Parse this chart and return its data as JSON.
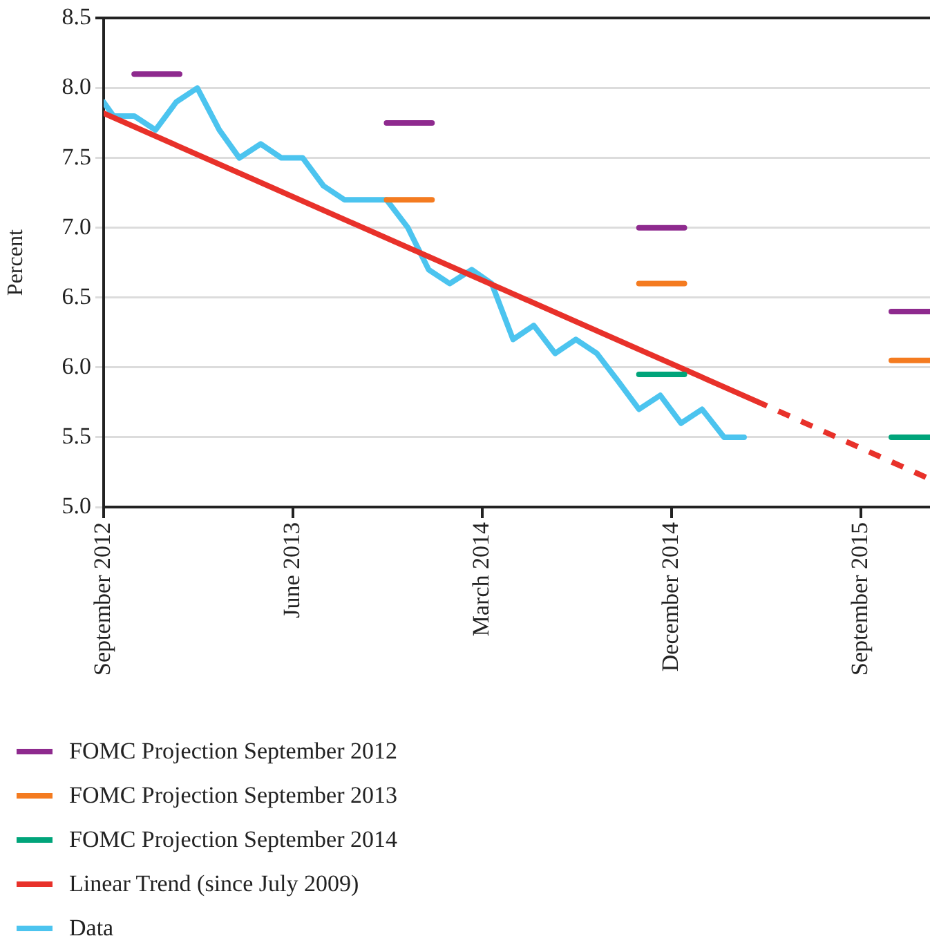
{
  "chart_data": {
    "type": "line",
    "ylabel": "Percent",
    "xlim": [
      "2012-09-01",
      "2015-12-10"
    ],
    "xticks": [
      {
        "value": "2012-09-01",
        "label": "September 2012"
      },
      {
        "value": "2013-06-01",
        "label": "June 2013"
      },
      {
        "value": "2014-03-01",
        "label": "March 2014"
      },
      {
        "value": "2014-12-01",
        "label": "December 2014"
      },
      {
        "value": "2015-09-01",
        "label": "September 2015"
      }
    ],
    "ylim": [
      5,
      8.5
    ],
    "yticks": [
      {
        "value": 5,
        "label": "5.0"
      },
      {
        "value": 5.5,
        "label": "5.5"
      },
      {
        "value": 6,
        "label": "6.0"
      },
      {
        "value": 6.5,
        "label": "6.5"
      },
      {
        "value": 7,
        "label": "7.0"
      },
      {
        "value": 7.5,
        "label": "7.5"
      },
      {
        "value": 8,
        "label": "8.0"
      },
      {
        "value": 8.5,
        "label": "8.5"
      }
    ],
    "grid": "y",
    "legend": "bottom",
    "marker": "none",
    "series": [
      {
        "name": "FOMC Projection September 2012",
        "color": "#8e2a8e",
        "line_style": "solid",
        "x": [
          "2012-10-15",
          "2012-12-20"
        ],
        "values": [
          8.1,
          8.1
        ]
      },
      {
        "name": "FOMC Projection September 2013",
        "color": "#f47b20",
        "line_style": "solid",
        "x": [
          "2013-10-15",
          "2013-12-20"
        ],
        "values": [
          7.2,
          7.2
        ]
      },
      {
        "name": "FOMC Projection September 2014",
        "color": "#00a47a",
        "line_style": "solid",
        "x": [
          "2014-10-15",
          "2014-12-20"
        ],
        "values": [
          5.95,
          5.95
        ]
      },
      {
        "color": "#8e2a8e",
        "line_style": "solid",
        "x": [
          "2013-10-15",
          "2013-12-20"
        ],
        "values": [
          7.75,
          7.75
        ]
      },
      {
        "color": "#8e2a8e",
        "line_style": "solid",
        "x": [
          "2014-10-15",
          "2014-12-20"
        ],
        "values": [
          7.0,
          7.0
        ]
      },
      {
        "color": "#8e2a8e",
        "line_style": "solid",
        "x": [
          "2015-10-15",
          "2015-12-10"
        ],
        "values": [
          6.4,
          6.4
        ]
      },
      {
        "color": "#f47b20",
        "line_style": "solid",
        "x": [
          "2014-10-15",
          "2014-12-20"
        ],
        "values": [
          6.6,
          6.6
        ]
      },
      {
        "color": "#f47b20",
        "line_style": "solid",
        "x": [
          "2015-10-15",
          "2015-12-10"
        ],
        "values": [
          6.05,
          6.05
        ]
      },
      {
        "color": "#00a47a",
        "line_style": "solid",
        "x": [
          "2015-10-15",
          "2015-12-10"
        ],
        "values": [
          5.5,
          5.5
        ]
      },
      {
        "name": "Linear Trend (since July 2009)",
        "color": "#e8312a",
        "line_style": "solid",
        "x": [
          "2012-09-01",
          "2015-04-01"
        ],
        "values": [
          7.82,
          5.76
        ]
      },
      {
        "name": "Data",
        "color": "#4cc4ef",
        "line_style": "solid",
        "x": [
          "2012-09-01",
          "2012-09-15",
          "2012-10-15",
          "2012-11-15",
          "2012-12-15",
          "2013-01-15",
          "2013-02-15",
          "2013-03-15",
          "2013-04-15",
          "2013-05-15",
          "2013-06-15",
          "2013-07-15",
          "2013-08-15",
          "2013-09-15",
          "2013-10-15",
          "2013-11-15",
          "2013-12-15",
          "2014-01-15",
          "2014-02-15",
          "2014-03-15",
          "2014-04-15",
          "2014-05-15",
          "2014-06-15",
          "2014-07-15",
          "2014-08-15",
          "2014-09-15",
          "2014-10-15",
          "2014-11-15",
          "2014-12-15",
          "2015-01-15",
          "2015-02-15",
          "2015-03-15"
        ],
        "values": [
          7.9,
          7.8,
          7.8,
          7.7,
          7.9,
          8.0,
          7.7,
          7.5,
          7.6,
          7.5,
          7.5,
          7.3,
          7.2,
          7.2,
          7.2,
          7.0,
          6.7,
          6.6,
          6.7,
          6.6,
          6.2,
          6.3,
          6.1,
          6.2,
          6.1,
          5.9,
          5.7,
          5.8,
          5.6,
          5.7,
          5.5,
          5.5
        ]
      },
      {
        "color": "#e8312a",
        "line_style": "dashed",
        "x": [
          "2015-04-01",
          "2015-12-10"
        ],
        "values": [
          5.76,
          5.2
        ]
      }
    ]
  }
}
